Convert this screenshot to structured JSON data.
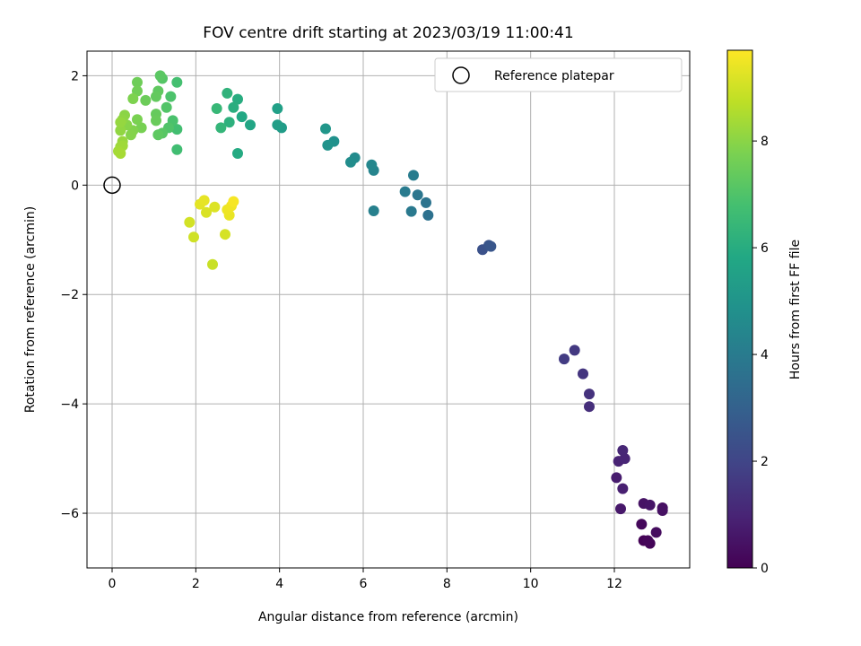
{
  "chart_data": {
    "type": "scatter",
    "title": "FOV centre drift starting at 2023/03/19 11:00:41",
    "xlabel": "Angular distance from reference (arcmin)",
    "ylabel": "Rotation from reference (arcmin)",
    "xlim": [
      -0.6,
      13.8
    ],
    "ylim": [
      -7.0,
      2.45
    ],
    "xticks": [
      0,
      2,
      4,
      6,
      8,
      10,
      12
    ],
    "yticks": [
      -6,
      -4,
      -2,
      0,
      2
    ],
    "xtick_labels": [
      "0",
      "2",
      "4",
      "6",
      "8",
      "10",
      "12"
    ],
    "ytick_labels": [
      "−6",
      "−4",
      "−2",
      "0",
      "2"
    ],
    "grid": true,
    "legend": {
      "position": "top-right",
      "entries": [
        "Reference platepar"
      ]
    },
    "colorbar": {
      "label": "Hours from first FF file",
      "colormap": "viridis",
      "range": [
        0,
        9.7
      ],
      "ticks": [
        0,
        2,
        4,
        6,
        8
      ],
      "tick_labels": [
        "0",
        "2",
        "4",
        "6",
        "8"
      ]
    },
    "reference_point": {
      "x": 0,
      "y": 0
    },
    "points": [
      {
        "x": 12.7,
        "y": -6.5,
        "h": 0.05
      },
      {
        "x": 12.85,
        "y": -6.55,
        "h": 0.1
      },
      {
        "x": 12.8,
        "y": -6.5,
        "h": 0.15
      },
      {
        "x": 12.65,
        "y": -6.2,
        "h": 0.2
      },
      {
        "x": 13.0,
        "y": -6.35,
        "h": 0.3
      },
      {
        "x": 13.15,
        "y": -5.9,
        "h": 0.4
      },
      {
        "x": 13.15,
        "y": -5.95,
        "h": 0.45
      },
      {
        "x": 12.7,
        "y": -5.82,
        "h": 0.5
      },
      {
        "x": 12.85,
        "y": -5.85,
        "h": 0.55
      },
      {
        "x": 12.15,
        "y": -5.92,
        "h": 0.65
      },
      {
        "x": 12.05,
        "y": -5.35,
        "h": 0.75
      },
      {
        "x": 12.2,
        "y": -5.55,
        "h": 0.85
      },
      {
        "x": 12.1,
        "y": -5.05,
        "h": 0.95
      },
      {
        "x": 12.25,
        "y": -5.0,
        "h": 1.0
      },
      {
        "x": 12.2,
        "y": -4.85,
        "h": 1.05
      },
      {
        "x": 11.4,
        "y": -4.05,
        "h": 1.3
      },
      {
        "x": 11.4,
        "y": -3.82,
        "h": 1.4
      },
      {
        "x": 11.25,
        "y": -3.45,
        "h": 1.5
      },
      {
        "x": 11.05,
        "y": -3.02,
        "h": 1.6
      },
      {
        "x": 10.8,
        "y": -3.18,
        "h": 1.7
      },
      {
        "x": 8.85,
        "y": -1.18,
        "h": 2.4
      },
      {
        "x": 9.0,
        "y": -1.1,
        "h": 2.5
      },
      {
        "x": 9.05,
        "y": -1.12,
        "h": 2.6
      },
      {
        "x": 7.55,
        "y": -0.55,
        "h": 3.6
      },
      {
        "x": 7.5,
        "y": -0.32,
        "h": 3.7
      },
      {
        "x": 7.3,
        "y": -0.18,
        "h": 3.8
      },
      {
        "x": 7.15,
        "y": -0.48,
        "h": 3.9
      },
      {
        "x": 7.0,
        "y": -0.12,
        "h": 4.0
      },
      {
        "x": 7.2,
        "y": 0.18,
        "h": 4.05
      },
      {
        "x": 6.25,
        "y": -0.47,
        "h": 4.2
      },
      {
        "x": 6.25,
        "y": 0.27,
        "h": 4.35
      },
      {
        "x": 6.2,
        "y": 0.37,
        "h": 4.45
      },
      {
        "x": 5.8,
        "y": 0.5,
        "h": 4.6
      },
      {
        "x": 5.7,
        "y": 0.42,
        "h": 4.7
      },
      {
        "x": 5.3,
        "y": 0.8,
        "h": 4.85
      },
      {
        "x": 5.15,
        "y": 0.73,
        "h": 4.95
      },
      {
        "x": 5.1,
        "y": 1.03,
        "h": 5.05
      },
      {
        "x": 4.05,
        "y": 1.05,
        "h": 5.3
      },
      {
        "x": 3.95,
        "y": 1.1,
        "h": 5.4
      },
      {
        "x": 3.95,
        "y": 1.4,
        "h": 5.5
      },
      {
        "x": 3.3,
        "y": 1.1,
        "h": 5.7
      },
      {
        "x": 3.1,
        "y": 1.25,
        "h": 5.8
      },
      {
        "x": 3.0,
        "y": 0.58,
        "h": 5.9
      },
      {
        "x": 3.0,
        "y": 1.57,
        "h": 6.0
      },
      {
        "x": 2.9,
        "y": 1.42,
        "h": 6.05
      },
      {
        "x": 2.8,
        "y": 1.15,
        "h": 6.15
      },
      {
        "x": 2.75,
        "y": 1.68,
        "h": 6.25
      },
      {
        "x": 2.6,
        "y": 1.05,
        "h": 6.35
      },
      {
        "x": 2.5,
        "y": 1.4,
        "h": 6.45
      },
      {
        "x": 1.55,
        "y": 0.65,
        "h": 6.7
      },
      {
        "x": 1.55,
        "y": 1.02,
        "h": 6.75
      },
      {
        "x": 1.55,
        "y": 1.88,
        "h": 6.8
      },
      {
        "x": 1.45,
        "y": 1.18,
        "h": 6.9
      },
      {
        "x": 1.4,
        "y": 1.62,
        "h": 6.95
      },
      {
        "x": 1.35,
        "y": 1.05,
        "h": 7.0
      },
      {
        "x": 1.3,
        "y": 1.42,
        "h": 7.05
      },
      {
        "x": 1.2,
        "y": 1.95,
        "h": 7.1
      },
      {
        "x": 1.2,
        "y": 0.95,
        "h": 7.15
      },
      {
        "x": 1.15,
        "y": 2.0,
        "h": 7.2
      },
      {
        "x": 1.1,
        "y": 0.92,
        "h": 7.25
      },
      {
        "x": 1.1,
        "y": 1.72,
        "h": 7.3
      },
      {
        "x": 1.05,
        "y": 1.62,
        "h": 7.35
      },
      {
        "x": 1.05,
        "y": 1.3,
        "h": 7.4
      },
      {
        "x": 1.05,
        "y": 1.18,
        "h": 7.45
      },
      {
        "x": 0.8,
        "y": 1.55,
        "h": 7.5
      },
      {
        "x": 0.6,
        "y": 1.88,
        "h": 7.55
      },
      {
        "x": 0.6,
        "y": 1.72,
        "h": 7.6
      },
      {
        "x": 0.7,
        "y": 1.05,
        "h": 7.7
      },
      {
        "x": 0.6,
        "y": 1.2,
        "h": 7.75
      },
      {
        "x": 0.5,
        "y": 1.58,
        "h": 7.8
      },
      {
        "x": 0.5,
        "y": 1.0,
        "h": 7.85
      },
      {
        "x": 0.45,
        "y": 0.92,
        "h": 7.9
      },
      {
        "x": 0.35,
        "y": 1.1,
        "h": 7.95
      },
      {
        "x": 0.3,
        "y": 1.28,
        "h": 8.0
      },
      {
        "x": 0.25,
        "y": 1.2,
        "h": 8.05
      },
      {
        "x": 0.2,
        "y": 1.0,
        "h": 8.1
      },
      {
        "x": 0.2,
        "y": 1.15,
        "h": 8.15
      },
      {
        "x": 0.25,
        "y": 0.8,
        "h": 8.2
      },
      {
        "x": 0.2,
        "y": 0.7,
        "h": 8.25
      },
      {
        "x": 0.25,
        "y": 0.72,
        "h": 8.3
      },
      {
        "x": 0.15,
        "y": 0.62,
        "h": 8.35
      },
      {
        "x": 0.2,
        "y": 0.58,
        "h": 8.4
      },
      {
        "x": 2.4,
        "y": -1.45,
        "h": 8.9
      },
      {
        "x": 1.95,
        "y": -0.95,
        "h": 9.0
      },
      {
        "x": 1.85,
        "y": -0.68,
        "h": 9.05
      },
      {
        "x": 2.7,
        "y": -0.9,
        "h": 9.1
      },
      {
        "x": 2.25,
        "y": -0.5,
        "h": 9.15
      },
      {
        "x": 2.45,
        "y": -0.4,
        "h": 9.2
      },
      {
        "x": 2.1,
        "y": -0.35,
        "h": 9.3
      },
      {
        "x": 2.2,
        "y": -0.28,
        "h": 9.35
      },
      {
        "x": 2.8,
        "y": -0.55,
        "h": 9.4
      },
      {
        "x": 2.75,
        "y": -0.45,
        "h": 9.45
      },
      {
        "x": 2.85,
        "y": -0.38,
        "h": 9.5
      },
      {
        "x": 2.9,
        "y": -0.3,
        "h": 9.6
      }
    ]
  }
}
